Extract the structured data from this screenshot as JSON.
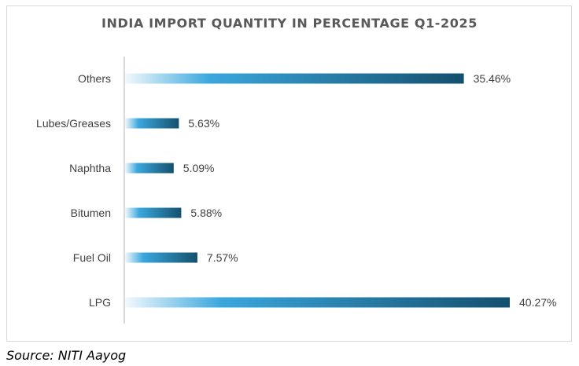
{
  "chart_data": {
    "type": "bar",
    "orientation": "horizontal",
    "title": "INDIA IMPORT QUANTITY IN PERCENTAGE Q1-2025",
    "categories": [
      "Others",
      "Lubes/Greases",
      "Naphtha",
      "Bitumen",
      "Fuel Oil",
      "LPG"
    ],
    "values": [
      35.46,
      5.63,
      5.09,
      5.88,
      7.57,
      40.27
    ],
    "value_labels": [
      "35.46%",
      "5.63%",
      "5.09%",
      "5.88%",
      "7.57%",
      "40.27%"
    ],
    "xlim": [
      0,
      40.27
    ],
    "grid": false,
    "legend": "none",
    "colors": {
      "bar_start": "#f3f9fd",
      "bar_mid": "#3aa7dd",
      "bar_end": "#14506e",
      "axis": "#d9d9d9",
      "text": "#404040"
    }
  },
  "source": "Source: NITI Aayog"
}
